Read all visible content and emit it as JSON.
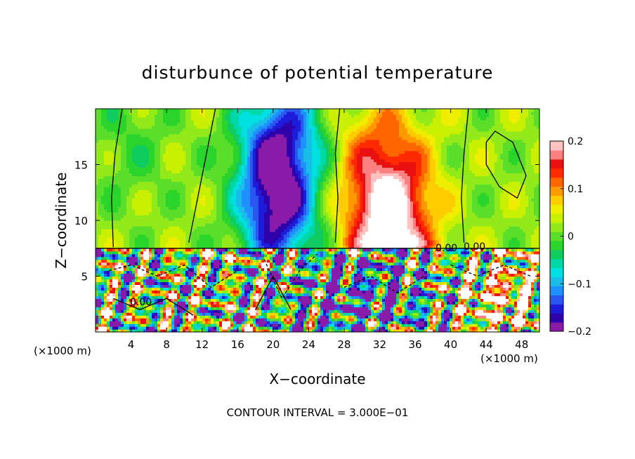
{
  "chart_data": {
    "type": "heatmap",
    "title": "disturbunce of potential temperature",
    "xlabel": "X−coordinate",
    "ylabel": "Z−coordinate",
    "x_unit_left": "(×1000 m)",
    "x_unit_right": "(×1000 m)",
    "xlim": [
      0,
      50
    ],
    "ylim": [
      0,
      20
    ],
    "x_ticks": [
      4,
      8,
      12,
      16,
      20,
      24,
      28,
      32,
      36,
      40,
      44,
      48
    ],
    "x_tick_labels": [
      "4",
      "8",
      "12",
      "16",
      "20",
      "24",
      "28",
      "32",
      "36",
      "40",
      "44",
      "48"
    ],
    "y_ticks": [
      5,
      10,
      15
    ],
    "y_tick_labels": [
      "5",
      "10",
      "15"
    ],
    "colorbar": {
      "min": -0.2,
      "max": 0.2,
      "ticks": [
        0.2,
        0.1,
        0,
        -0.1,
        -0.2
      ],
      "tick_labels": [
        "0.2",
        "0.1",
        "0",
        "−0.1",
        "−0.2"
      ],
      "colors": [
        "#8a1aa8",
        "#2e00aa",
        "#1d1dd9",
        "#2a57f0",
        "#1e90ff",
        "#19bde8",
        "#00e0e0",
        "#00d8a8",
        "#10cc60",
        "#2ad42a",
        "#5ade2a",
        "#92ea1a",
        "#c8f000",
        "#f0ee00",
        "#ffcc00",
        "#ff9900",
        "#ff6600",
        "#ff2a00",
        "#e81010",
        "#ff8080",
        "#ffc0c0"
      ]
    },
    "contour_labels": [
      "0.00",
      "0.00",
      "0.00"
    ],
    "contour_interval_text": "CONTOUR INTERVAL = 3.000E−01",
    "fields": {
      "upper_layer": "smooth: warm anomaly 28-38 (peak ~0.2 near z=10-12), cool anomaly 16-26 (min ~-0.2 near z=8-14), near 0 elsewhere",
      "lower_layer": "turbulent mixing below z~7.5 with values ranging from -0.2 to 0.2"
    }
  }
}
